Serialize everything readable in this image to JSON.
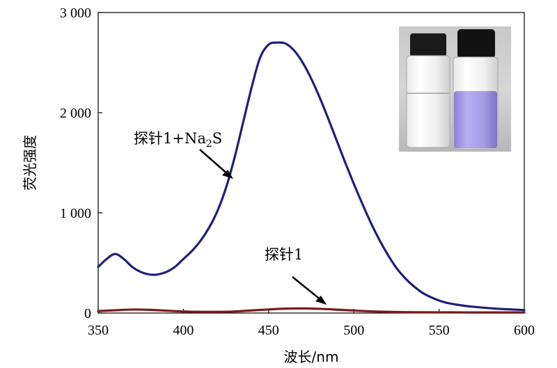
{
  "chart_data": {
    "type": "line",
    "title": "",
    "xlabel": "波长/nm",
    "ylabel": "荧光强度",
    "xlim": [
      350,
      600
    ],
    "ylim": [
      0,
      3000
    ],
    "x_ticks": [
      350,
      400,
      450,
      500,
      550,
      600
    ],
    "x_tick_labels": [
      "350",
      "400",
      "450",
      "500",
      "550",
      "600"
    ],
    "y_ticks": [
      0,
      1000,
      2000,
      3000
    ],
    "y_tick_labels": [
      "0",
      "1 000",
      "2 000",
      "3 000"
    ],
    "grid": false,
    "legend": "none",
    "series": [
      {
        "name": "探针1+Na2S",
        "color": "#1f1f7a",
        "x": [
          350,
          355,
          360,
          365,
          370,
          375,
          380,
          385,
          390,
          395,
          400,
          405,
          410,
          415,
          420,
          425,
          430,
          435,
          440,
          445,
          450,
          455,
          460,
          465,
          470,
          475,
          480,
          485,
          490,
          495,
          500,
          505,
          510,
          515,
          520,
          525,
          530,
          535,
          540,
          545,
          550,
          555,
          560,
          565,
          570,
          575,
          580,
          585,
          590,
          595,
          600
        ],
        "values": [
          460,
          540,
          590,
          540,
          460,
          410,
          385,
          385,
          410,
          460,
          540,
          620,
          720,
          850,
          1020,
          1250,
          1550,
          1900,
          2250,
          2550,
          2680,
          2700,
          2690,
          2620,
          2500,
          2340,
          2150,
          1940,
          1720,
          1500,
          1290,
          1090,
          900,
          730,
          580,
          450,
          350,
          270,
          205,
          160,
          125,
          100,
          85,
          72,
          63,
          55,
          48,
          42,
          38,
          34,
          30
        ]
      },
      {
        "name": "探针1",
        "color": "#7a1a1a",
        "x": [
          350,
          360,
          370,
          380,
          390,
          400,
          410,
          420,
          430,
          440,
          450,
          460,
          470,
          480,
          490,
          500,
          510,
          520,
          530,
          540,
          550,
          560,
          570,
          580,
          590,
          600
        ],
        "values": [
          20,
          28,
          35,
          32,
          24,
          16,
          12,
          12,
          16,
          26,
          36,
          44,
          46,
          42,
          34,
          25,
          17,
          12,
          9,
          8,
          7,
          7,
          6,
          6,
          6,
          6
        ]
      }
    ],
    "annotations": [
      {
        "text_main": "探针1+Na",
        "text_sub": "2",
        "text_tail": "S"
      },
      {
        "text_main": "探针1"
      }
    ],
    "inset": {
      "content": "photo-of-two-vials"
    }
  }
}
